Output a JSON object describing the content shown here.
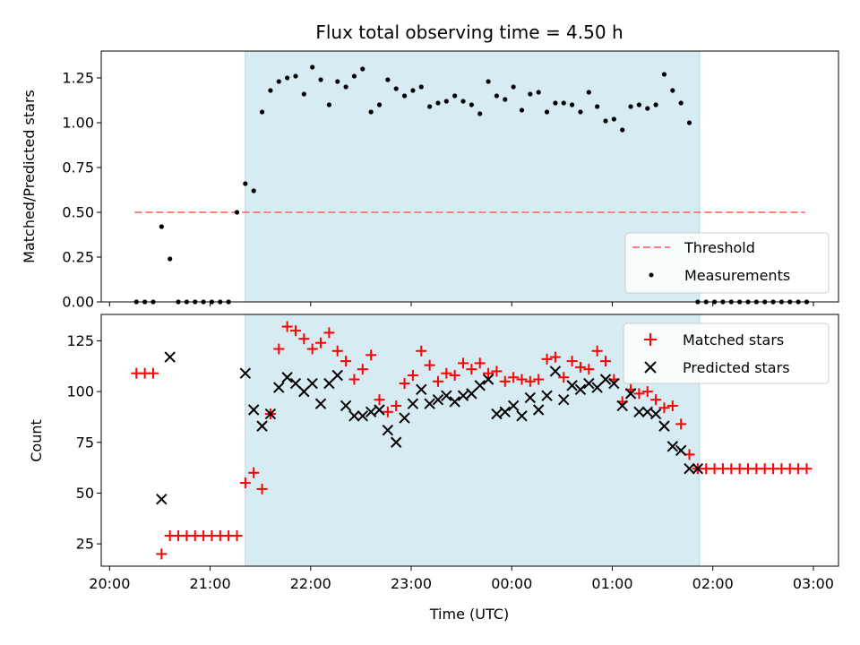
{
  "chart_data": [
    {
      "type": "scatter",
      "title": "Flux total observing time = 4.50 h",
      "ylabel": "Matched/Predicted stars",
      "xlabel": "",
      "ylim": [
        0,
        1.4
      ],
      "yticks": [
        "0.00",
        "0.25",
        "0.50",
        "0.75",
        "1.00",
        "1.25"
      ],
      "threshold": {
        "name": "Threshold",
        "value": 0.5,
        "x_start": "20:15",
        "x_end": "02:55",
        "color": "#ff7f7f"
      },
      "observing_window": {
        "start": "21:21",
        "end": "01:52",
        "color": "#add8e6"
      },
      "legend_position": "lower-right",
      "series": [
        {
          "name": "Measurements",
          "color": "#000000",
          "marker": "dot",
          "x": [
            "20:16",
            "20:21",
            "20:26",
            "20:31",
            "20:36",
            "20:41",
            "20:46",
            "20:51",
            "20:56",
            "21:01",
            "21:06",
            "21:11",
            "21:16",
            "21:21",
            "21:26",
            "21:31",
            "21:36",
            "21:41",
            "21:46",
            "21:51",
            "21:56",
            "22:01",
            "22:06",
            "22:11",
            "22:16",
            "22:21",
            "22:26",
            "22:31",
            "22:36",
            "22:41",
            "22:46",
            "22:51",
            "22:56",
            "23:01",
            "23:06",
            "23:11",
            "23:16",
            "23:21",
            "23:26",
            "23:31",
            "23:36",
            "23:41",
            "23:46",
            "23:51",
            "23:56",
            "00:01",
            "00:06",
            "00:11",
            "00:16",
            "00:21",
            "00:26",
            "00:31",
            "00:36",
            "00:41",
            "00:46",
            "00:51",
            "00:56",
            "01:01",
            "01:06",
            "01:11",
            "01:16",
            "01:21",
            "01:26",
            "01:31",
            "01:36",
            "01:41",
            "01:46",
            "01:51",
            "01:56",
            "02:01",
            "02:06",
            "02:11",
            "02:16",
            "02:21",
            "02:26",
            "02:31",
            "02:36",
            "02:41",
            "02:46",
            "02:51",
            "02:56"
          ],
          "y": [
            0,
            0,
            0,
            0.42,
            0.24,
            0,
            0,
            0,
            0,
            0,
            0,
            0,
            0.5,
            0.66,
            0.62,
            1.06,
            1.18,
            1.23,
            1.25,
            1.26,
            1.16,
            1.31,
            1.24,
            1.1,
            1.23,
            1.2,
            1.26,
            1.3,
            1.06,
            1.1,
            1.24,
            1.19,
            1.15,
            1.18,
            1.2,
            1.09,
            1.11,
            1.12,
            1.15,
            1.12,
            1.1,
            1.05,
            1.23,
            1.15,
            1.13,
            1.2,
            1.07,
            1.16,
            1.17,
            1.06,
            1.11,
            1.11,
            1.1,
            1.06,
            1.17,
            1.09,
            1.01,
            1.02,
            0.96,
            1.09,
            1.1,
            1.08,
            1.1,
            1.27,
            1.18,
            1.11,
            1.0,
            0,
            0,
            0,
            0,
            0,
            0,
            0,
            0,
            0,
            0,
            0,
            0,
            0,
            0
          ]
        }
      ]
    },
    {
      "type": "scatter",
      "title": "",
      "xlabel": "Time (UTC)",
      "ylabel": "Count",
      "ylim": [
        14,
        138
      ],
      "yticks": [
        "25",
        "50",
        "75",
        "100",
        "125"
      ],
      "xticks": [
        "20:00",
        "21:00",
        "22:00",
        "23:00",
        "00:00",
        "01:00",
        "02:00",
        "03:00"
      ],
      "observing_window": {
        "start": "21:21",
        "end": "01:52",
        "color": "#add8e6"
      },
      "legend_position": "upper-right",
      "series": [
        {
          "name": "Matched stars",
          "color": "#ff0000",
          "marker": "plus",
          "x": [
            "20:16",
            "20:21",
            "20:26",
            "20:31",
            "20:36",
            "20:41",
            "20:46",
            "20:51",
            "20:56",
            "21:01",
            "21:06",
            "21:11",
            "21:16",
            "21:21",
            "21:26",
            "21:31",
            "21:36",
            "21:41",
            "21:46",
            "21:51",
            "21:56",
            "22:01",
            "22:06",
            "22:11",
            "22:16",
            "22:21",
            "22:26",
            "22:31",
            "22:36",
            "22:41",
            "22:46",
            "22:51",
            "22:56",
            "23:01",
            "23:06",
            "23:11",
            "23:16",
            "23:21",
            "23:26",
            "23:31",
            "23:36",
            "23:41",
            "23:46",
            "23:51",
            "23:56",
            "00:01",
            "00:06",
            "00:11",
            "00:16",
            "00:21",
            "00:26",
            "00:31",
            "00:36",
            "00:41",
            "00:46",
            "00:51",
            "00:56",
            "01:01",
            "01:06",
            "01:11",
            "01:16",
            "01:21",
            "01:26",
            "01:31",
            "01:36",
            "01:41",
            "01:46",
            "01:51",
            "01:56",
            "02:01",
            "02:06",
            "02:11",
            "02:16",
            "02:21",
            "02:26",
            "02:31",
            "02:36",
            "02:41",
            "02:46",
            "02:51",
            "02:56"
          ],
          "y": [
            109,
            109,
            109,
            20,
            29,
            29,
            29,
            29,
            29,
            29,
            29,
            29,
            29,
            55,
            60,
            52,
            89,
            121,
            132,
            130,
            126,
            121,
            124,
            129,
            120,
            115,
            106,
            111,
            118,
            96,
            90,
            93,
            104,
            108,
            120,
            113,
            105,
            109,
            108,
            114,
            111,
            114,
            109,
            110,
            105,
            107,
            106,
            105,
            106,
            116,
            117,
            107,
            115,
            112,
            111,
            120,
            115,
            106,
            95,
            101,
            99,
            100,
            96,
            92,
            93,
            84,
            69,
            62,
            62,
            62,
            62,
            62,
            62,
            62,
            62,
            62,
            62,
            62,
            62,
            62,
            62
          ]
        },
        {
          "name": "Predicted stars",
          "color": "#000000",
          "marker": "x",
          "x": [
            "20:31",
            "20:36",
            "21:21",
            "21:26",
            "21:31",
            "21:36",
            "21:41",
            "21:46",
            "21:51",
            "21:56",
            "22:01",
            "22:06",
            "22:11",
            "22:16",
            "22:21",
            "22:26",
            "22:31",
            "22:36",
            "22:41",
            "22:46",
            "22:51",
            "22:56",
            "23:01",
            "23:06",
            "23:11",
            "23:16",
            "23:21",
            "23:26",
            "23:31",
            "23:36",
            "23:41",
            "23:46",
            "23:51",
            "23:56",
            "00:01",
            "00:06",
            "00:11",
            "00:16",
            "00:21",
            "00:26",
            "00:31",
            "00:36",
            "00:41",
            "00:46",
            "00:51",
            "00:56",
            "01:01",
            "01:06",
            "01:11",
            "01:16",
            "01:21",
            "01:26",
            "01:31",
            "01:36",
            "01:41",
            "01:46",
            "01:51"
          ],
          "y": [
            47,
            117,
            109,
            91,
            83,
            89,
            102,
            107,
            104,
            100,
            104,
            94,
            104,
            108,
            93,
            88,
            88,
            90,
            91,
            81,
            75,
            87,
            94,
            101,
            94,
            96,
            98,
            95,
            98,
            99,
            103,
            106,
            89,
            90,
            93,
            88,
            97,
            91,
            98,
            110,
            96,
            103,
            101,
            104,
            102,
            106,
            104,
            93,
            99,
            90,
            90,
            89,
            83,
            73,
            71,
            62,
            62
          ]
        }
      ]
    }
  ]
}
